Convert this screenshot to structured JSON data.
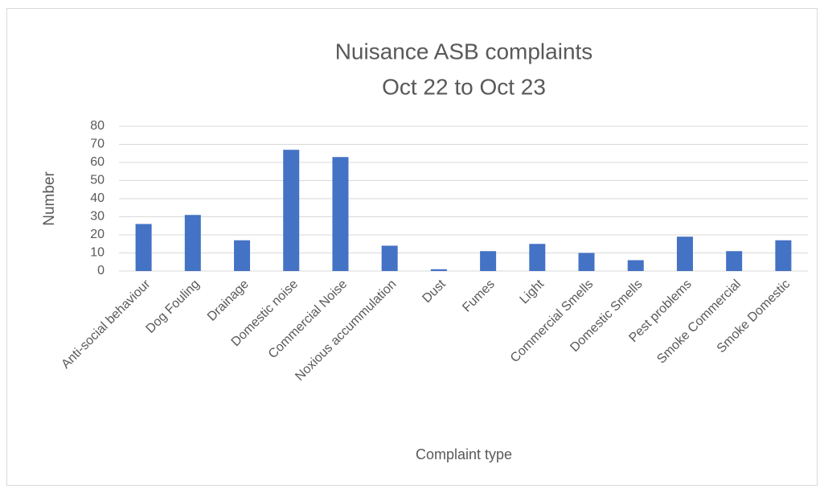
{
  "chart_data": {
    "type": "bar",
    "title": "Nuisance ASB complaints",
    "subtitle": "Oct 22 to Oct 23",
    "x_label": "Complaint type",
    "y_label": "Number",
    "categories": [
      "Anti-social behaviour",
      "Dog Fouling",
      "Drainage",
      "Domestic noise",
      "Commercial Noise",
      "Noxious accummulation",
      "Dust",
      "Fumes",
      "Light",
      "Commercial Smells",
      "Domestic Smells",
      "Pest problems",
      "Smoke Commercial",
      "Smoke Domestic"
    ],
    "values": [
      26,
      31,
      17,
      67,
      63,
      14,
      1,
      11,
      15,
      10,
      6,
      19,
      11,
      17
    ],
    "color": "#4472c4",
    "ylim": [
      0,
      80
    ],
    "yticks": [
      0,
      10,
      20,
      30,
      40,
      50,
      60,
      70,
      80
    ],
    "grid": true
  }
}
